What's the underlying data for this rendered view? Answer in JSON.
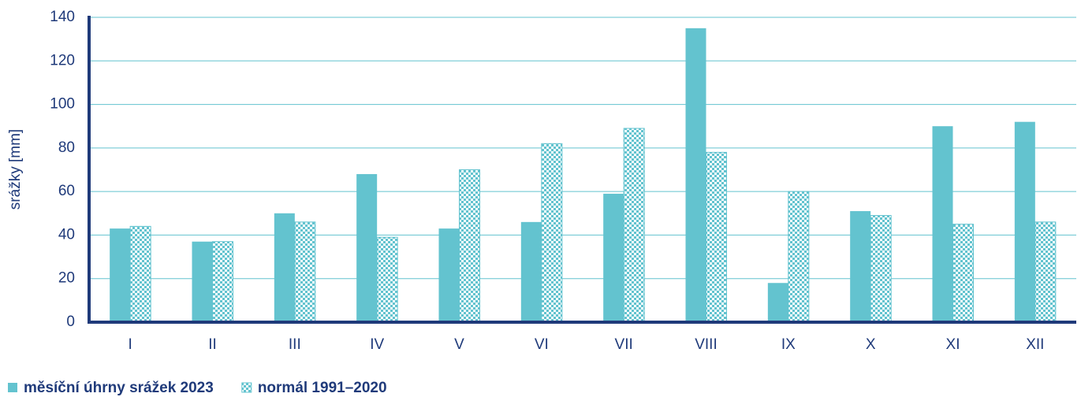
{
  "chart_data": {
    "type": "bar",
    "y_label": "srážky [mm]",
    "categories": [
      "I",
      "II",
      "III",
      "IV",
      "V",
      "VI",
      "VII",
      "VIII",
      "IX",
      "X",
      "XI",
      "XII"
    ],
    "series": [
      {
        "name": "měsíční úhrny srážek 2023",
        "color": "#63c3cf",
        "values": [
          43,
          37,
          50,
          68,
          43,
          46,
          59,
          135,
          18,
          51,
          90,
          92
        ]
      },
      {
        "name": "normál 1991–2020",
        "color": "#63c3cf",
        "pattern": "checkerboard",
        "values": [
          44,
          37,
          46,
          39,
          70,
          82,
          89,
          78,
          60,
          49,
          45,
          46
        ]
      }
    ],
    "ylim": [
      0,
      140
    ],
    "yticks": [
      0,
      20,
      40,
      60,
      80,
      100,
      120,
      140
    ],
    "grid": true,
    "legend": "bottom-left"
  }
}
